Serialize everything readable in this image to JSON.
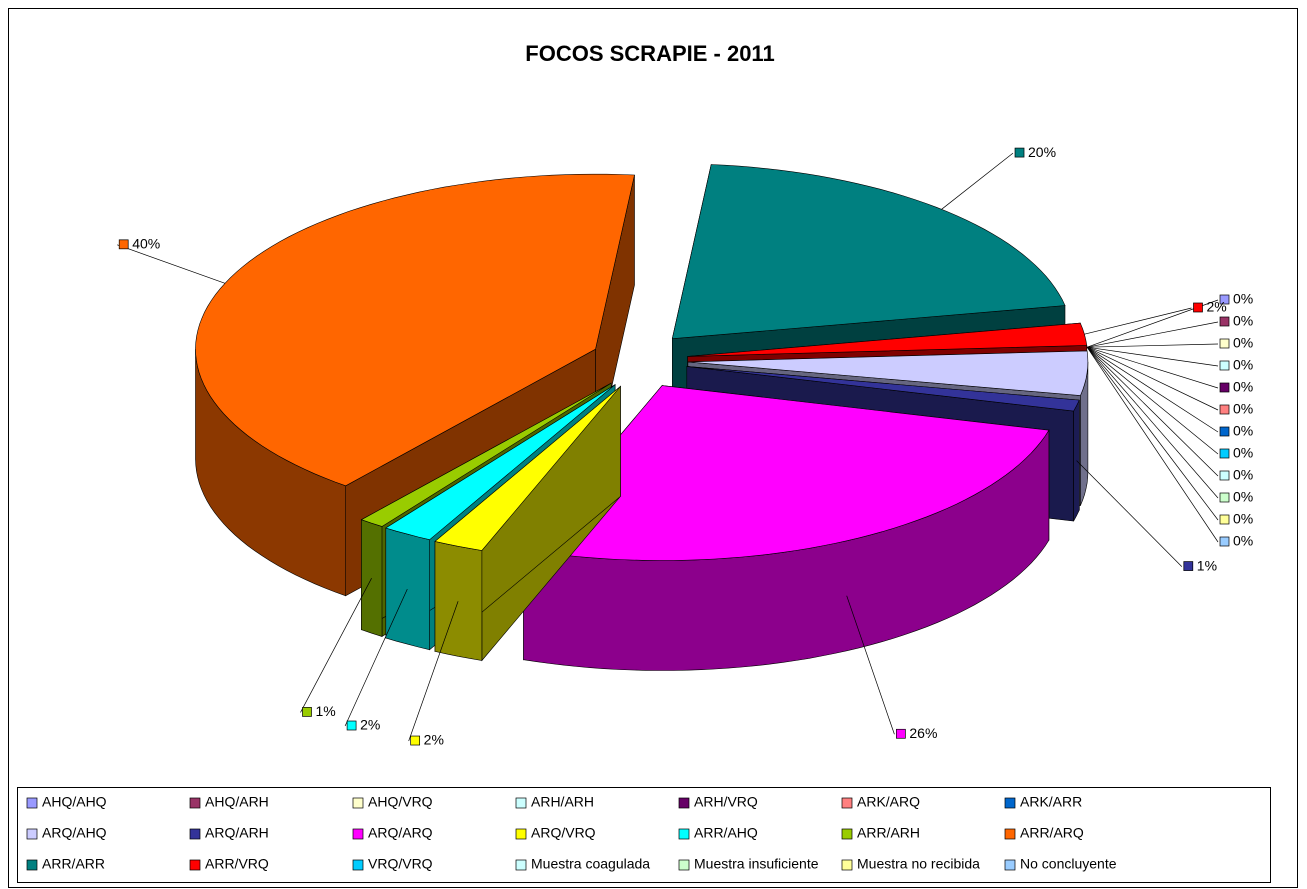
{
  "chart_data": {
    "type": "pie3d",
    "title": "FOCOS SCRAPIE - 2011",
    "categories": [
      "AHQ/AHQ",
      "AHQ/ARH",
      "AHQ/VRQ",
      "ARH/ARH",
      "ARH/VRQ",
      "ARK/ARQ",
      "ARK/ARR",
      "ARQ/AHQ",
      "ARQ/ARH",
      "ARQ/ARQ",
      "ARQ/VRQ",
      "ARR/AHQ",
      "ARR/ARH",
      "ARR/ARQ",
      "ARR/ARR",
      "ARR/VRQ",
      "VRQ/VRQ",
      "Muestra coagulada",
      "Muestra insuficiente",
      "Muestra no recibida",
      "No concluyente"
    ],
    "values": [
      0,
      0,
      0,
      0,
      0,
      0,
      0,
      4,
      1,
      26,
      2,
      2,
      1,
      40,
      20,
      2,
      0,
      0,
      0,
      0,
      0
    ],
    "value_labels": [
      "0%",
      "0%",
      "0%",
      "0%",
      "0%",
      "0%",
      "0%",
      null,
      "1%",
      "26%",
      "2%",
      "2%",
      "1%",
      "40%",
      "20%",
      "2%",
      "0%",
      "0%",
      "0%",
      "0%",
      "0%"
    ],
    "colors": [
      "#9999ff",
      "#993366",
      "#ffffcc",
      "#ccffff",
      "#660066",
      "#ff8080",
      "#0066cc",
      "#ccccff",
      "#333399",
      "#ff00ff",
      "#ffff00",
      "#00ffff",
      "#99cc00",
      "#ff6600",
      "#008080",
      "#ff0000",
      "#00ccff",
      "#ccffff",
      "#ccffcc",
      "#ffff99",
      "#99ccff"
    ],
    "legend": "bottom"
  }
}
